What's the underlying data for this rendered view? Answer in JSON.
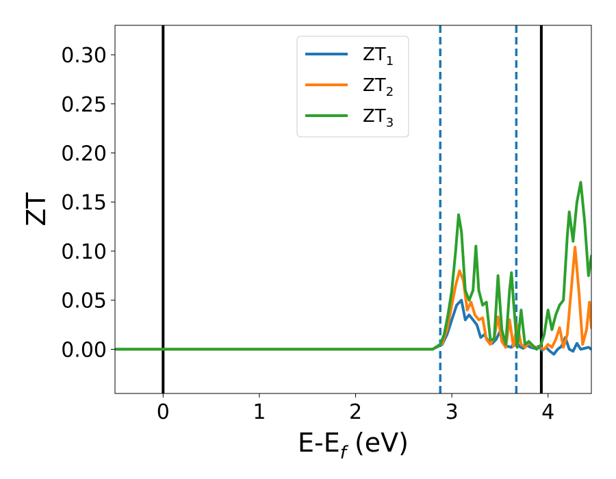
{
  "chart_data": {
    "type": "line",
    "xlabel_main": "E-E",
    "xlabel_sub": "f",
    "xlabel_unit": " (eV)",
    "ylabel": "ZT",
    "xlim": [
      -0.5,
      4.45
    ],
    "ylim": [
      -0.045,
      0.33
    ],
    "xticks": [
      0,
      1,
      2,
      3,
      4
    ],
    "xtick_labels": [
      "0",
      "1",
      "2",
      "3",
      "4"
    ],
    "yticks": [
      0.0,
      0.05,
      0.1,
      0.15,
      0.2,
      0.25,
      0.3
    ],
    "ytick_labels": [
      "0.00",
      "0.05",
      "0.10",
      "0.15",
      "0.20",
      "0.25",
      "0.30"
    ],
    "legend_position": "top-center",
    "grid": false,
    "vertical_lines": [
      {
        "x": 0.0,
        "style": "solid",
        "color": "#000000"
      },
      {
        "x": 2.88,
        "style": "dashed",
        "color": "#1f77b4"
      },
      {
        "x": 3.67,
        "style": "dashed",
        "color": "#1f77b4"
      },
      {
        "x": 3.93,
        "style": "solid",
        "color": "#000000"
      }
    ],
    "series": [
      {
        "name_main": "ZT",
        "name_sub": "1",
        "color": "#1f77b4",
        "x": [
          -0.5,
          2.8,
          2.9,
          2.95,
          3.0,
          3.05,
          3.1,
          3.14,
          3.18,
          3.22,
          3.26,
          3.3,
          3.34,
          3.38,
          3.42,
          3.46,
          3.5,
          3.54,
          3.58,
          3.62,
          3.66,
          3.7,
          3.74,
          3.78,
          3.82,
          3.86,
          3.9,
          3.94,
          3.98,
          4.02,
          4.06,
          4.1,
          4.14,
          4.18,
          4.22,
          4.26,
          4.3,
          4.34,
          4.38,
          4.42,
          4.45
        ],
        "y": [
          0.0,
          0.0,
          0.005,
          0.015,
          0.03,
          0.045,
          0.05,
          0.03,
          0.035,
          0.03,
          0.025,
          0.012,
          0.015,
          0.008,
          0.006,
          0.01,
          0.018,
          0.005,
          0.003,
          0.002,
          0.01,
          0.003,
          0.001,
          0.004,
          0.002,
          0.001,
          0.003,
          -0.001,
          0.002,
          -0.002,
          -0.005,
          0.0,
          0.003,
          0.012,
          0.0,
          -0.002,
          0.006,
          0.0,
          0.001,
          0.002,
          0.0
        ]
      },
      {
        "name_main": "ZT",
        "name_sub": "2",
        "color": "#ff7f0e",
        "x": [
          -0.5,
          2.8,
          2.9,
          2.95,
          3.0,
          3.04,
          3.08,
          3.12,
          3.16,
          3.2,
          3.24,
          3.28,
          3.32,
          3.36,
          3.4,
          3.44,
          3.48,
          3.52,
          3.56,
          3.6,
          3.64,
          3.68,
          3.72,
          3.76,
          3.8,
          3.84,
          3.88,
          3.92,
          3.96,
          4.0,
          4.04,
          4.08,
          4.12,
          4.16,
          4.2,
          4.24,
          4.28,
          4.32,
          4.36,
          4.4,
          4.43,
          4.45
        ],
        "y": [
          0.0,
          0.0,
          0.006,
          0.02,
          0.045,
          0.065,
          0.08,
          0.07,
          0.04,
          0.048,
          0.035,
          0.03,
          0.032,
          0.01,
          0.005,
          0.012,
          0.033,
          0.008,
          0.002,
          0.03,
          0.003,
          0.025,
          0.005,
          0.002,
          0.007,
          0.003,
          0.002,
          0.002,
          0.0,
          0.005,
          0.002,
          0.01,
          0.022,
          0.002,
          0.015,
          0.06,
          0.104,
          0.06,
          0.005,
          0.02,
          0.048,
          0.022
        ]
      },
      {
        "name_main": "ZT",
        "name_sub": "3",
        "color": "#2ca02c",
        "x": [
          -0.5,
          2.8,
          2.88,
          2.92,
          2.96,
          3.0,
          3.04,
          3.07,
          3.1,
          3.14,
          3.18,
          3.22,
          3.25,
          3.28,
          3.32,
          3.36,
          3.4,
          3.44,
          3.48,
          3.52,
          3.56,
          3.6,
          3.62,
          3.64,
          3.68,
          3.72,
          3.76,
          3.8,
          3.84,
          3.88,
          3.92,
          3.96,
          4.0,
          4.04,
          4.08,
          4.12,
          4.16,
          4.2,
          4.22,
          4.26,
          4.3,
          4.34,
          4.38,
          4.42,
          4.45
        ],
        "y": [
          0.0,
          0.0,
          0.005,
          0.015,
          0.035,
          0.06,
          0.1,
          0.137,
          0.12,
          0.06,
          0.05,
          0.06,
          0.105,
          0.06,
          0.045,
          0.048,
          0.01,
          0.01,
          0.075,
          0.02,
          0.005,
          0.06,
          0.078,
          0.05,
          0.002,
          0.04,
          0.005,
          0.008,
          0.004,
          0.0,
          0.003,
          0.015,
          0.04,
          0.02,
          0.035,
          0.045,
          0.05,
          0.115,
          0.14,
          0.11,
          0.15,
          0.17,
          0.13,
          0.075,
          0.095
        ]
      }
    ]
  }
}
